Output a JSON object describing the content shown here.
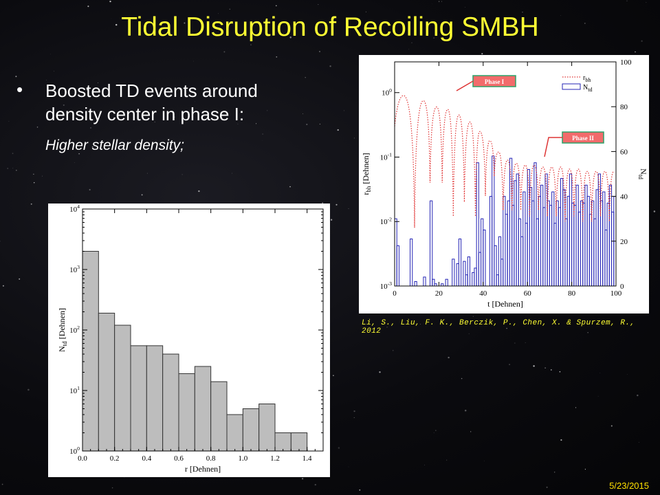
{
  "slide": {
    "title": "Tidal Disruption of Recoiling SMBH",
    "bullet": "Boosted TD events around density center in phase I:",
    "subpoint": "Higher stellar density;",
    "citation": "Li, S., Liu, F. K., Berczik, P., Chen, X. & Spurzem, R., 2012",
    "date": "5/23/2015",
    "colors": {
      "title": "#ffff33",
      "text": "#ffffff",
      "citation": "#ffff33"
    }
  },
  "chart_data": [
    {
      "type": "bar",
      "xlabel": "r [Dehnen]",
      "ylabel": "N_td [Dehnen]",
      "yscale": "log",
      "ylim": [
        1,
        10000
      ],
      "xlim": [
        0.0,
        1.5
      ],
      "xticks": [
        "0.0",
        "0.2",
        "0.4",
        "0.6",
        "0.8",
        "1.0",
        "1.2",
        "1.4"
      ],
      "yticks": [
        "10^0",
        "10^1",
        "10^2",
        "10^3",
        "10^4"
      ],
      "bin_width": 0.1,
      "bin_starts": [
        0.0,
        0.1,
        0.2,
        0.3,
        0.4,
        0.5,
        0.6,
        0.7,
        0.8,
        0.9,
        1.0,
        1.1,
        1.2,
        1.3
      ],
      "values": [
        2000,
        190,
        120,
        55,
        55,
        40,
        19,
        25,
        14,
        4,
        5,
        6,
        2,
        2
      ],
      "bar_color": "#bdbdbd"
    },
    {
      "type": "line",
      "xlabel": "t [Dehnen]",
      "ylabel_left": "r_bh [Dehnen]",
      "ylabel_right": "N_td",
      "xlim": [
        0,
        100
      ],
      "xticks": [
        "0",
        "20",
        "40",
        "60",
        "80",
        "100"
      ],
      "left_yscale": "log",
      "left_ylim": [
        0.001,
        3
      ],
      "left_yticks": [
        "10^-3",
        "10^-2",
        "10^-1",
        "10^0"
      ],
      "right_ylim": [
        0,
        100
      ],
      "right_yticks": [
        "0",
        "20",
        "40",
        "60",
        "80",
        "100"
      ],
      "legend": [
        "r_bh",
        "N_td"
      ],
      "legend_position": "top-right",
      "annotations": [
        "Phase I",
        "Phase II"
      ],
      "series": [
        {
          "name": "r_bh",
          "style": "dotted",
          "color": "#e03030",
          "peaks_t": [
            4,
            13,
            19,
            24,
            29,
            34,
            38.5,
            43,
            47,
            51,
            55,
            59,
            63,
            67,
            71,
            75,
            79,
            83,
            87,
            91,
            95,
            99
          ],
          "peaks_r": [
            0.9,
            0.75,
            0.6,
            0.55,
            0.45,
            0.35,
            0.25,
            0.18,
            0.12,
            0.09,
            0.08,
            0.075,
            0.075,
            0.07,
            0.07,
            0.07,
            0.065,
            0.065,
            0.06,
            0.06,
            0.06,
            0.06
          ],
          "troughs_t": [
            9,
            16,
            21.5,
            26.5,
            31.5,
            36.5,
            41,
            45,
            49,
            53,
            57,
            61,
            65,
            69,
            73,
            77,
            81,
            85,
            89,
            93,
            97
          ],
          "troughs_r": [
            0.008,
            0.04,
            0.04,
            0.012,
            0.02,
            0.012,
            0.025,
            0.05,
            0.015,
            0.015,
            0.015,
            0.012,
            0.015,
            0.012,
            0.012,
            0.01,
            0.012,
            0.01,
            0.01,
            0.012,
            0.01
          ]
        },
        {
          "name": "N_td",
          "style": "step",
          "color": "#2323b5",
          "bin_width": 1,
          "values": [
            30,
            18,
            0,
            0,
            0,
            0,
            0,
            21,
            0,
            2,
            0,
            0,
            0,
            4,
            0,
            0,
            38,
            3,
            1,
            0,
            0,
            1,
            0,
            3,
            0,
            0,
            12,
            0,
            10,
            21,
            0,
            11,
            5,
            13,
            0,
            6,
            8,
            55,
            15,
            30,
            25,
            0,
            0,
            40,
            58,
            18,
            5,
            22,
            12,
            40,
            32,
            38,
            57,
            36,
            47,
            50,
            30,
            22,
            42,
            28,
            52,
            44,
            38,
            55,
            30,
            40,
            45,
            35,
            50,
            38,
            36,
            42,
            28,
            38,
            35,
            48,
            43,
            30,
            40,
            50,
            37,
            36,
            45,
            33,
            38,
            37,
            45,
            40,
            32,
            38,
            30,
            43,
            50,
            38,
            42,
            25,
            37,
            45,
            33,
            40
          ]
        }
      ]
    }
  ]
}
